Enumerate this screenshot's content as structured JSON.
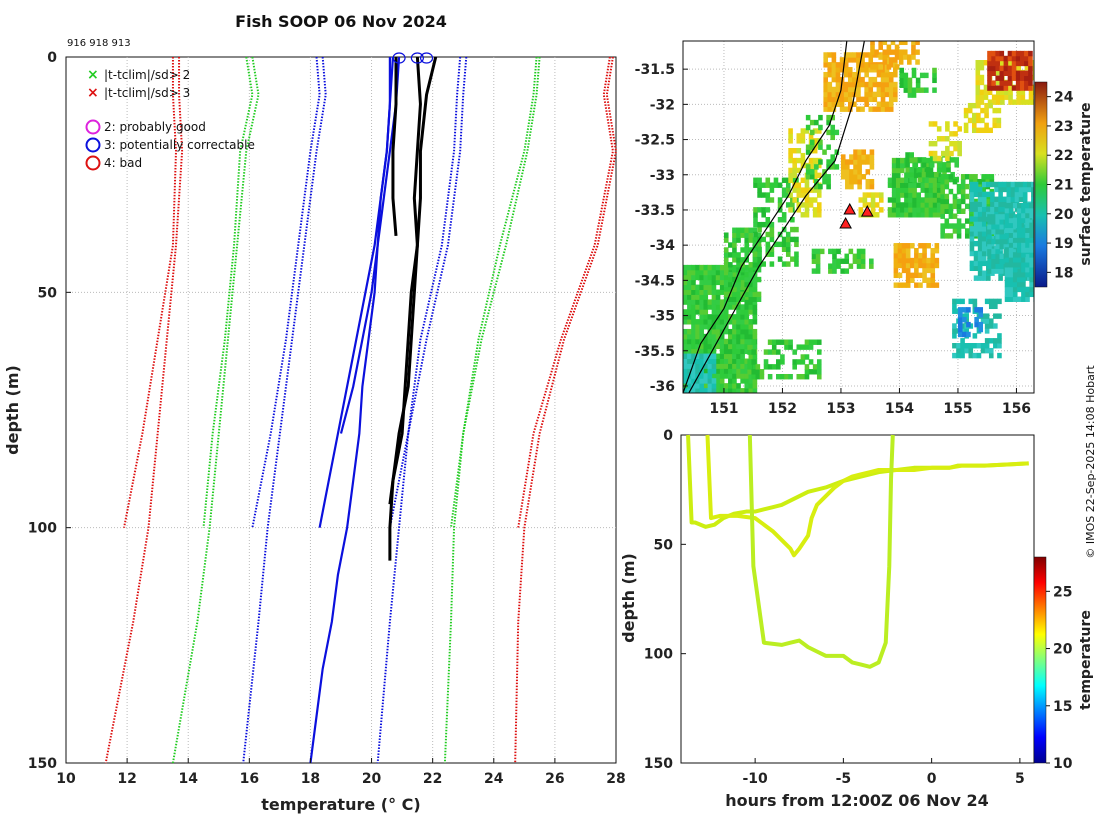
{
  "title": "Fish SOOP 06 Nov 2024",
  "platform_ids": "916 918 913",
  "credit": "© IMOS 22-Sep-2025 14:08 Hobart",
  "colors": {
    "green": "#22cc22",
    "red": "#dd1111",
    "blue": "#0b10dd",
    "magenta": "#dd22dd",
    "black": "#000000",
    "track": "#ccee11"
  },
  "legend": {
    "criteria": [
      {
        "marker": "x",
        "color": "#22cc22",
        "label": "|t-tclim|/sd> 2"
      },
      {
        "marker": "x",
        "color": "#dd1111",
        "label": "|t-tclim|/sd> 3"
      }
    ],
    "flags": [
      {
        "marker": "o",
        "color": "#dd22dd",
        "label": "2: probably good"
      },
      {
        "marker": "o",
        "color": "#0b10dd",
        "label": "3: potentially correctable"
      },
      {
        "marker": "o",
        "color": "#dd1111",
        "label": "4: bad"
      }
    ]
  },
  "chart_data": [
    {
      "type": "line",
      "name": "profiles",
      "xlabel": "temperature (° C)",
      "ylabel": "depth (m)",
      "xlim": [
        10,
        28
      ],
      "ylim": [
        150,
        0
      ],
      "xticks": [
        "10",
        "12",
        "14",
        "16",
        "18",
        "20",
        "22",
        "24",
        "26",
        "28"
      ],
      "yticks": [
        "0",
        "50",
        "100",
        "150"
      ],
      "climatology": [
        {
          "name": "clim -3sd a",
          "color": "red",
          "depth": [
            0,
            8,
            20,
            40,
            60,
            80,
            100
          ],
          "temp": [
            13.5,
            13.5,
            13.6,
            13.5,
            13.0,
            12.5,
            11.9
          ]
        },
        {
          "name": "clim -3sd b",
          "color": "red",
          "depth": [
            0,
            8,
            20,
            40,
            60,
            80,
            100,
            120,
            150
          ],
          "temp": [
            13.7,
            13.7,
            13.8,
            13.6,
            13.3,
            13.0,
            12.7,
            12.2,
            11.3
          ]
        },
        {
          "name": "clim -2sd a",
          "color": "green",
          "depth": [
            0,
            8,
            20,
            40,
            60,
            80,
            100
          ],
          "temp": [
            15.9,
            16.1,
            15.7,
            15.5,
            15.2,
            14.8,
            14.5
          ]
        },
        {
          "name": "clim -2sd b",
          "color": "green",
          "depth": [
            0,
            8,
            20,
            40,
            60,
            80,
            100,
            120,
            150
          ],
          "temp": [
            16.1,
            16.3,
            15.9,
            15.6,
            15.3,
            15.0,
            14.7,
            14.3,
            13.5
          ]
        },
        {
          "name": "clim -1sd a",
          "color": "blue",
          "depth": [
            0,
            8,
            20,
            40,
            60,
            80,
            100
          ],
          "temp": [
            18.2,
            18.3,
            18.0,
            17.6,
            17.2,
            16.7,
            16.1
          ]
        },
        {
          "name": "clim -1sd b",
          "color": "blue",
          "depth": [
            0,
            8,
            20,
            40,
            60,
            80,
            100,
            120,
            150
          ],
          "temp": [
            18.4,
            18.5,
            18.2,
            17.8,
            17.4,
            17.0,
            16.6,
            16.3,
            15.8
          ]
        },
        {
          "name": "clim +1sd a",
          "color": "blue",
          "depth": [
            0,
            8,
            20,
            40,
            60,
            80,
            100
          ],
          "temp": [
            23.1,
            23.0,
            22.9,
            22.5,
            21.8,
            21.2,
            20.6
          ]
        },
        {
          "name": "clim +1sd b",
          "color": "blue",
          "depth": [
            0,
            8,
            20,
            40,
            60,
            80,
            100,
            120,
            150
          ],
          "temp": [
            22.9,
            22.8,
            22.7,
            22.3,
            21.6,
            21.2,
            20.9,
            20.6,
            20.2
          ]
        },
        {
          "name": "clim +2sd a",
          "color": "green",
          "depth": [
            0,
            8,
            20,
            40,
            60,
            80,
            100
          ],
          "temp": [
            25.5,
            25.4,
            25.1,
            24.4,
            23.6,
            23.0,
            22.6
          ]
        },
        {
          "name": "clim +2sd b",
          "color": "green",
          "depth": [
            0,
            8,
            20,
            40,
            60,
            80,
            100,
            120,
            150
          ],
          "temp": [
            25.4,
            25.3,
            25.0,
            24.2,
            23.5,
            23.0,
            22.7,
            22.6,
            22.4
          ]
        },
        {
          "name": "clim +3sd a",
          "color": "red",
          "depth": [
            0,
            8,
            20,
            40,
            60,
            80,
            100
          ],
          "temp": [
            27.8,
            27.6,
            27.9,
            27.3,
            26.2,
            25.3,
            24.8
          ]
        },
        {
          "name": "clim +3sd b",
          "color": "red",
          "depth": [
            0,
            8,
            20,
            40,
            60,
            80,
            100,
            120,
            150
          ],
          "temp": [
            27.9,
            27.7,
            28.0,
            27.4,
            26.3,
            25.5,
            25.0,
            24.8,
            24.7
          ]
        }
      ],
      "profiles": [
        {
          "id": "916",
          "color": "blue",
          "depth": [
            0,
            10,
            20,
            30,
            40,
            50,
            60,
            70,
            80,
            90,
            100
          ],
          "temp": [
            20.7,
            20.6,
            20.5,
            20.3,
            20.1,
            19.8,
            19.5,
            19.2,
            18.9,
            18.6,
            18.3
          ]
        },
        {
          "id": "918",
          "color": "blue",
          "depth": [
            0,
            10,
            20,
            30,
            40,
            50,
            60,
            70,
            80,
            90,
            100,
            110,
            120,
            130,
            140,
            150
          ],
          "temp": [
            20.6,
            20.6,
            20.5,
            20.3,
            20.2,
            20.1,
            19.9,
            19.7,
            19.6,
            19.4,
            19.2,
            18.9,
            18.7,
            18.4,
            18.2,
            18.0
          ]
        },
        {
          "id": "913",
          "color": "blue",
          "depth": [
            0,
            10,
            20,
            30,
            40,
            50,
            60,
            70,
            80
          ],
          "temp": [
            20.9,
            20.8,
            20.6,
            20.4,
            20.2,
            20.0,
            19.7,
            19.4,
            19.0
          ]
        },
        {
          "id": "916b",
          "color": "black",
          "depth": [
            0,
            10,
            20,
            30,
            38
          ],
          "temp": [
            20.8,
            20.8,
            20.7,
            20.7,
            20.8
          ]
        },
        {
          "id": "918b",
          "color": "black",
          "depth": [
            0,
            10,
            20,
            30,
            40,
            50,
            60,
            70,
            80,
            90,
            100,
            107
          ],
          "temp": [
            21.5,
            21.6,
            21.5,
            21.4,
            21.5,
            21.3,
            21.2,
            21.1,
            21.0,
            20.7,
            20.6,
            20.6
          ]
        },
        {
          "id": "913b",
          "color": "black",
          "depth": [
            0,
            8,
            20,
            30,
            40,
            50,
            60,
            70,
            80,
            90,
            95
          ],
          "temp": [
            22.1,
            21.8,
            21.6,
            21.6,
            21.5,
            21.4,
            21.3,
            21.2,
            20.9,
            20.7,
            20.6
          ]
        }
      ],
      "flag_markers": [
        {
          "flag": "3",
          "depth": 0,
          "temp": 20.9
        },
        {
          "flag": "3",
          "depth": 0,
          "temp": 21.5
        },
        {
          "flag": "3",
          "depth": 0,
          "temp": 21.8
        }
      ]
    },
    {
      "type": "heatmap",
      "name": "sst_map",
      "xlim": [
        150.3,
        156.3
      ],
      "ylim": [
        -36.1,
        -31.1
      ],
      "xticks": [
        "151",
        "152",
        "153",
        "154",
        "155",
        "156"
      ],
      "yticks": [
        "-31.5",
        "-32",
        "-32.5",
        "-33",
        "-33.5",
        "-34",
        "-34.5",
        "-35",
        "-35.5",
        "-36"
      ],
      "colorbar": {
        "label": "surface temperature",
        "range": [
          17.5,
          24.5
        ],
        "ticks": [
          "18",
          "19",
          "20",
          "21",
          "22",
          "23",
          "24"
        ]
      },
      "stations": [
        {
          "lon": 153.15,
          "lat": -33.5
        },
        {
          "lon": 153.45,
          "lat": -33.53
        },
        {
          "lon": 153.08,
          "lat": -33.7
        }
      ],
      "coastline": {
        "lon": [
          150.3,
          150.6,
          151.0,
          151.3,
          151.7,
          152.1,
          152.4,
          152.8,
          153.0,
          153.1
        ],
        "lat": [
          -36.1,
          -35.4,
          -34.9,
          -34.3,
          -33.8,
          -33.3,
          -32.8,
          -32.3,
          -31.8,
          -31.1
        ]
      },
      "shelf_edge": {
        "lon": [
          150.4,
          150.8,
          151.2,
          151.6,
          152.0,
          152.4,
          152.9,
          153.2,
          153.4
        ],
        "lat": [
          -36.1,
          -35.5,
          -34.9,
          -34.3,
          -33.8,
          -33.3,
          -32.8,
          -32.0,
          -31.1
        ]
      }
    },
    {
      "type": "scatter",
      "name": "depth_track",
      "xlabel": "hours from 12:00Z 06 Nov 24",
      "ylabel": "depth (m)",
      "xlim": [
        -14.2,
        5.8
      ],
      "ylim": [
        150,
        0
      ],
      "xticks": [
        "-10",
        "-5",
        "0",
        "5"
      ],
      "yticks": [
        "0",
        "50",
        "100",
        "150"
      ],
      "colorbar": {
        "label": "temperature",
        "range": [
          10,
          28
        ],
        "ticks": [
          "10",
          "15",
          "20",
          "25"
        ]
      },
      "tracks": [
        {
          "hours": [
            -13.8,
            -13.6,
            -13.4,
            -12.8,
            -12.3,
            -11.8,
            -11.2,
            -10.5,
            -10.0,
            -9.5,
            -9.0,
            -8.5,
            -8.0,
            -7.5,
            -7.0,
            -6.0,
            -5.0,
            -4.0,
            -3.0,
            -2.0,
            -1.0,
            0.0,
            1.0,
            1.5,
            3.0,
            5.5
          ],
          "depth": [
            0,
            40,
            40,
            42,
            41,
            38,
            36,
            35,
            35,
            34,
            33,
            32,
            30,
            28,
            26,
            24,
            21,
            19,
            17,
            16,
            15,
            15,
            15,
            14,
            14,
            13
          ]
        },
        {
          "hours": [
            -12.7,
            -12.5,
            -12.0,
            -11.0,
            -10.0,
            -9.0,
            -8.5,
            -8.0,
            -7.8,
            -7.5,
            -7.0,
            -6.8,
            -6.5,
            -6.0,
            -5.5,
            -5.0,
            -4.5,
            -4.0,
            -3.5,
            -3.0,
            -2.0,
            -1.0,
            0.0,
            1.0,
            1.7,
            3.0,
            5.5
          ],
          "depth": [
            0,
            38,
            37,
            37,
            38,
            44,
            48,
            52,
            55,
            52,
            46,
            38,
            32,
            28,
            24,
            21,
            19,
            18,
            17,
            16,
            16,
            16,
            15,
            15,
            14,
            14,
            13
          ]
        },
        {
          "hours": [
            -10.3,
            -10.1,
            -9.5,
            -8.5,
            -8.0,
            -7.5,
            -7.0,
            -6.5,
            -6.0,
            -5.0,
            -4.5,
            -4.0,
            -3.5,
            -3.0,
            -2.6,
            -2.4,
            -2.3,
            -2.2
          ],
          "depth": [
            0,
            60,
            95,
            96,
            95,
            94,
            97,
            99,
            101,
            101,
            104,
            105,
            106,
            104,
            95,
            60,
            20,
            0
          ]
        }
      ]
    }
  ]
}
